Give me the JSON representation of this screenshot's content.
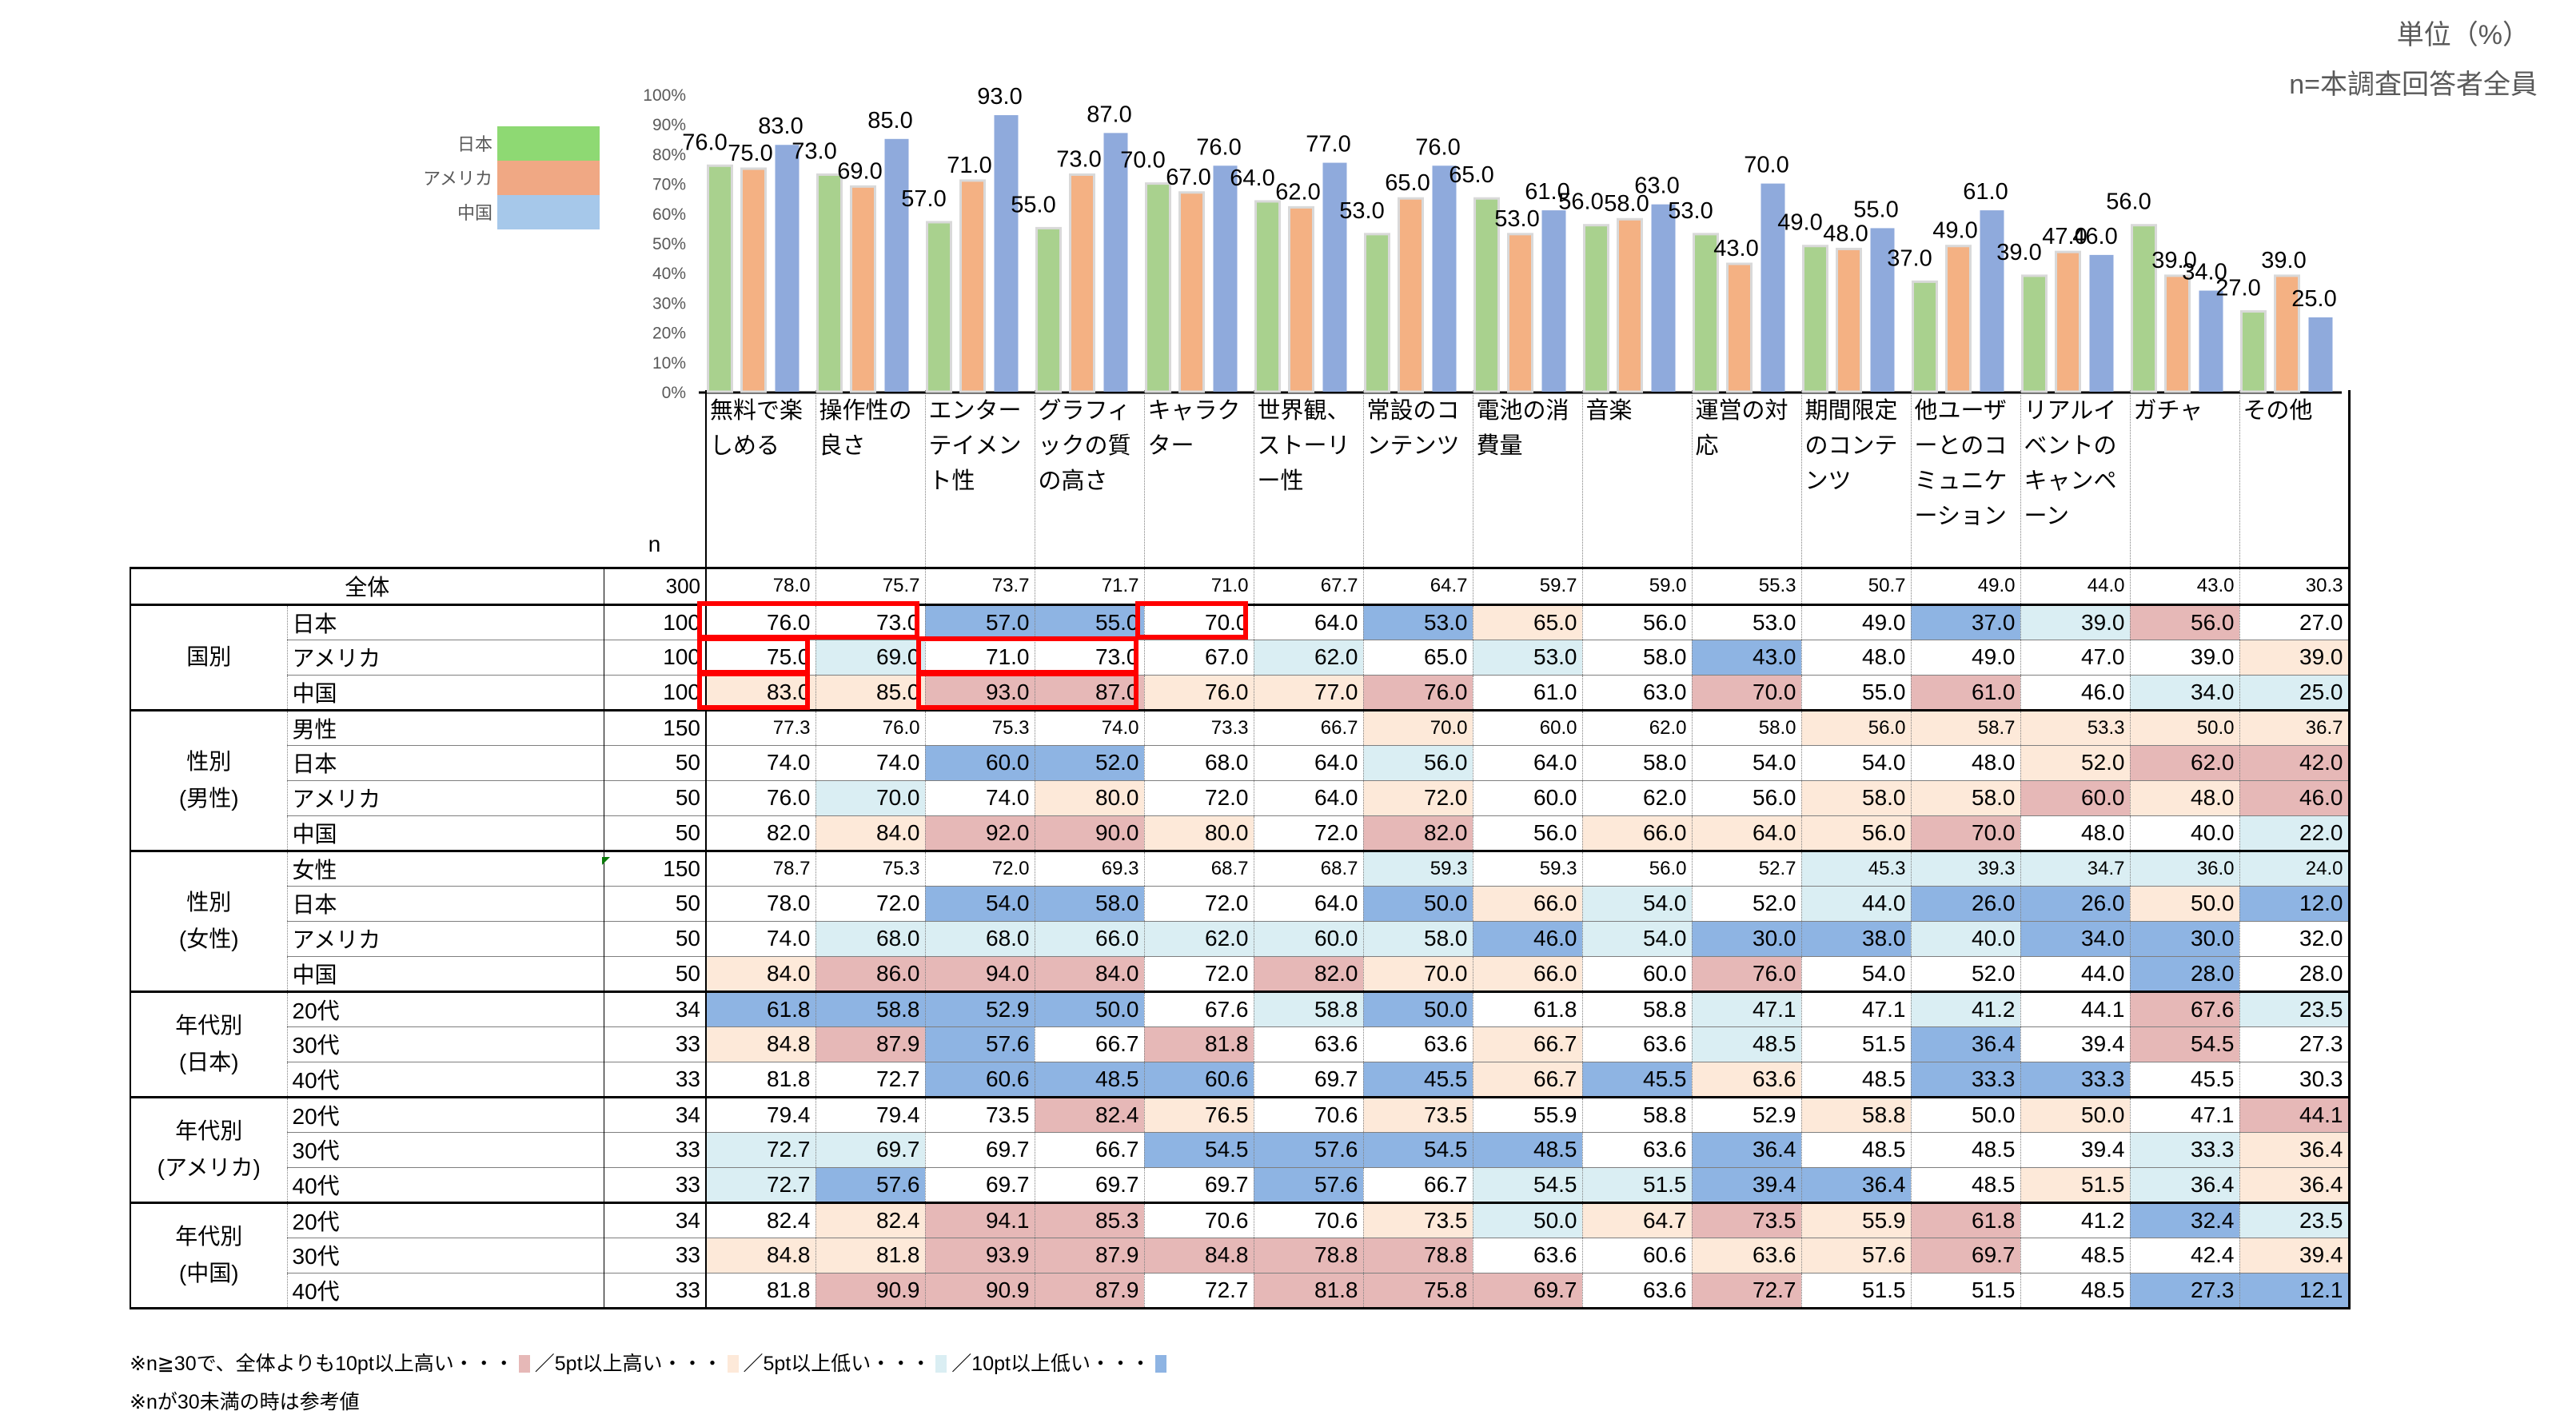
{
  "header": {
    "unit_label": "単位（%）",
    "n_label": "n=本調査回答者全員"
  },
  "colors": {
    "japan": "#a9d18e",
    "america": "#f4b183",
    "china": "#8faadc",
    "legend_japan": "#8ed973",
    "legend_america": "#f0a884",
    "legend_china": "#a6c8ea",
    "high10": "#e6b8b7",
    "high5": "#fde9d9",
    "low5": "#daeef3",
    "low10": "#8eb4e3",
    "highlight_box": "#ff0000"
  },
  "chart_data": {
    "type": "bar",
    "title": "",
    "xlabel": "",
    "ylabel": "",
    "ylim": [
      0,
      100
    ],
    "yticks": [
      "0%",
      "10%",
      "20%",
      "30%",
      "40%",
      "50%",
      "60%",
      "70%",
      "80%",
      "90%",
      "100%"
    ],
    "legend_position": "left",
    "grid": false,
    "categories": [
      "無料で楽しめる",
      "操作性の良さ",
      "エンターテイメント性",
      "グラフィックの質の高さ",
      "キャラクター",
      "世界観、ストーリー性",
      "常設のコンテンツ",
      "電池の消費量",
      "音楽",
      "運営の対応",
      "期間限定のコンテンツ",
      "他ユーザーとのコミュニケーション",
      "リアルイベントのキャンペーン",
      "ガチャ",
      "その他"
    ],
    "series": [
      {
        "name": "日本",
        "values": [
          76.0,
          73.0,
          57.0,
          55.0,
          70.0,
          64.0,
          53.0,
          65.0,
          56.0,
          53.0,
          49.0,
          37.0,
          39.0,
          56.0,
          27.0
        ]
      },
      {
        "name": "アメリカ",
        "values": [
          75.0,
          69.0,
          71.0,
          73.0,
          67.0,
          62.0,
          65.0,
          53.0,
          58.0,
          43.0,
          48.0,
          49.0,
          47.0,
          39.0,
          39.0
        ]
      },
      {
        "name": "中国",
        "values": [
          83.0,
          85.0,
          93.0,
          87.0,
          76.0,
          77.0,
          76.0,
          61.0,
          63.0,
          70.0,
          55.0,
          61.0,
          46.0,
          34.0,
          25.0
        ]
      }
    ],
    "data_label_format": "0.0"
  },
  "table": {
    "n_header": "n",
    "columns": [
      "無料で楽しめる",
      "操作性の良さ",
      "エンターテイメント性",
      "グラフィックの質の高さ",
      "キャラクター",
      "世界観、ストーリー性",
      "常設のコンテンツ",
      "電池の消費量",
      "音楽",
      "運営の対応",
      "期間限定のコンテンツ",
      "他ユーザーとのコミュニケーション",
      "リアルイベントのキャンペーン",
      "ガチャ",
      "その他"
    ],
    "total": {
      "label": "全体",
      "n": "300",
      "values": [
        "78.0",
        "75.7",
        "73.7",
        "71.7",
        "71.0",
        "67.7",
        "64.7",
        "59.7",
        "59.0",
        "55.3",
        "50.7",
        "49.0",
        "44.0",
        "43.0",
        "30.3"
      ]
    },
    "groups": [
      {
        "label": "国別",
        "rows": [
          {
            "label": "日本",
            "n": "100",
            "values": [
              "76.0",
              "73.0",
              "57.0",
              "55.0",
              "70.0",
              "64.0",
              "53.0",
              "65.0",
              "56.0",
              "53.0",
              "49.0",
              "37.0",
              "39.0",
              "56.0",
              "27.0"
            ],
            "flags": [
              "",
              "",
              "l10",
              "l10",
              "",
              "",
              "l10",
              "h5",
              "",
              "",
              "",
              "l10",
              "l5",
              "h10",
              ""
            ]
          },
          {
            "label": "アメリカ",
            "n": "100",
            "values": [
              "75.0",
              "69.0",
              "71.0",
              "73.0",
              "67.0",
              "62.0",
              "65.0",
              "53.0",
              "58.0",
              "43.0",
              "48.0",
              "49.0",
              "47.0",
              "39.0",
              "39.0"
            ],
            "flags": [
              "",
              "l5",
              "",
              "",
              "",
              "l5",
              "",
              "l5",
              "",
              "l10",
              "",
              "",
              "",
              "",
              "h5"
            ]
          },
          {
            "label": "中国",
            "n": "100",
            "values": [
              "83.0",
              "85.0",
              "93.0",
              "87.0",
              "76.0",
              "77.0",
              "76.0",
              "61.0",
              "63.0",
              "70.0",
              "55.0",
              "61.0",
              "46.0",
              "34.0",
              "25.0"
            ],
            "flags": [
              "h5",
              "h5",
              "h10",
              "h10",
              "h5",
              "h5",
              "h10",
              "",
              "",
              "h10",
              "",
              "h10",
              "",
              "l5",
              "l5"
            ]
          }
        ]
      },
      {
        "label": "性別\n(男性)",
        "rows": [
          {
            "label": "男性",
            "n": "150",
            "values": [
              "77.3",
              "76.0",
              "75.3",
              "74.0",
              "73.3",
              "66.7",
              "70.0",
              "60.0",
              "62.0",
              "58.0",
              "56.0",
              "58.7",
              "53.3",
              "50.0",
              "36.7"
            ],
            "flags": [
              "",
              "",
              "",
              "",
              "",
              "",
              "h5",
              "",
              "",
              "",
              "h5",
              "h5",
              "h5",
              "h5",
              "h5"
            ],
            "small": true
          },
          {
            "label": "日本",
            "n": "50",
            "values": [
              "74.0",
              "74.0",
              "60.0",
              "52.0",
              "68.0",
              "64.0",
              "56.0",
              "64.0",
              "58.0",
              "54.0",
              "54.0",
              "48.0",
              "52.0",
              "62.0",
              "42.0"
            ],
            "flags": [
              "",
              "",
              "l10",
              "l10",
              "",
              "",
              "l5",
              "",
              "",
              "",
              "",
              "",
              "h5",
              "h10",
              "h10"
            ]
          },
          {
            "label": "アメリカ",
            "n": "50",
            "values": [
              "76.0",
              "70.0",
              "74.0",
              "80.0",
              "72.0",
              "64.0",
              "72.0",
              "60.0",
              "62.0",
              "56.0",
              "58.0",
              "58.0",
              "60.0",
              "48.0",
              "46.0"
            ],
            "flags": [
              "",
              "l5",
              "",
              "h5",
              "",
              "",
              "h5",
              "",
              "",
              "",
              "h5",
              "h5",
              "h10",
              "h5",
              "h10"
            ]
          },
          {
            "label": "中国",
            "n": "50",
            "values": [
              "82.0",
              "84.0",
              "92.0",
              "90.0",
              "80.0",
              "72.0",
              "82.0",
              "56.0",
              "66.0",
              "64.0",
              "56.0",
              "70.0",
              "48.0",
              "40.0",
              "22.0"
            ],
            "flags": [
              "",
              "h5",
              "h10",
              "h10",
              "h5",
              "",
              "h10",
              "",
              "h5",
              "h5",
              "h5",
              "h10",
              "",
              "",
              "l5"
            ]
          }
        ]
      },
      {
        "label": "性別\n(女性)",
        "rows": [
          {
            "label": "女性",
            "n": "150",
            "values": [
              "78.7",
              "75.3",
              "72.0",
              "69.3",
              "68.7",
              "68.7",
              "59.3",
              "59.3",
              "56.0",
              "52.7",
              "45.3",
              "39.3",
              "34.7",
              "36.0",
              "24.0"
            ],
            "flags": [
              "",
              "",
              "",
              "",
              "",
              "",
              "l5",
              "",
              "",
              "",
              "l5",
              "l5",
              "l5",
              "l5",
              "l5"
            ],
            "small": true
          },
          {
            "label": "日本",
            "n": "50",
            "values": [
              "78.0",
              "72.0",
              "54.0",
              "58.0",
              "72.0",
              "64.0",
              "50.0",
              "66.0",
              "54.0",
              "52.0",
              "44.0",
              "26.0",
              "26.0",
              "50.0",
              "12.0"
            ],
            "flags": [
              "",
              "",
              "l10",
              "l10",
              "",
              "",
              "l10",
              "h5",
              "l5",
              "",
              "l5",
              "l10",
              "l10",
              "h5",
              "l10"
            ]
          },
          {
            "label": "アメリカ",
            "n": "50",
            "values": [
              "74.0",
              "68.0",
              "68.0",
              "66.0",
              "62.0",
              "60.0",
              "58.0",
              "46.0",
              "54.0",
              "30.0",
              "38.0",
              "40.0",
              "34.0",
              "30.0",
              "32.0"
            ],
            "flags": [
              "",
              "l5",
              "l5",
              "l5",
              "l5",
              "l5",
              "l5",
              "l10",
              "l5",
              "l10",
              "l10",
              "l5",
              "l10",
              "l10",
              ""
            ]
          },
          {
            "label": "中国",
            "n": "50",
            "values": [
              "84.0",
              "86.0",
              "94.0",
              "84.0",
              "72.0",
              "82.0",
              "70.0",
              "66.0",
              "60.0",
              "76.0",
              "54.0",
              "52.0",
              "44.0",
              "28.0",
              "28.0"
            ],
            "flags": [
              "h5",
              "h10",
              "h10",
              "h10",
              "",
              "h10",
              "h5",
              "h5",
              "",
              "h10",
              "",
              "",
              "",
              "l10",
              ""
            ]
          }
        ]
      },
      {
        "label": "年代別\n(日本)",
        "rows": [
          {
            "label": "20代",
            "n": "34",
            "values": [
              "61.8",
              "58.8",
              "52.9",
              "50.0",
              "67.6",
              "58.8",
              "50.0",
              "61.8",
              "58.8",
              "47.1",
              "47.1",
              "41.2",
              "44.1",
              "67.6",
              "23.5"
            ],
            "flags": [
              "l10",
              "l10",
              "l10",
              "l10",
              "",
              "l5",
              "l10",
              "",
              "",
              "l5",
              "",
              "l5",
              "",
              "h10",
              "l5"
            ]
          },
          {
            "label": "30代",
            "n": "33",
            "values": [
              "84.8",
              "87.9",
              "57.6",
              "66.7",
              "81.8",
              "63.6",
              "63.6",
              "66.7",
              "63.6",
              "48.5",
              "51.5",
              "36.4",
              "39.4",
              "54.5",
              "27.3"
            ],
            "flags": [
              "h5",
              "h10",
              "l10",
              "",
              "h10",
              "",
              "",
              "h5",
              "",
              "l5",
              "",
              "l10",
              "",
              "h10",
              ""
            ]
          },
          {
            "label": "40代",
            "n": "33",
            "values": [
              "81.8",
              "72.7",
              "60.6",
              "48.5",
              "60.6",
              "69.7",
              "45.5",
              "66.7",
              "45.5",
              "63.6",
              "48.5",
              "33.3",
              "33.3",
              "45.5",
              "30.3"
            ],
            "flags": [
              "",
              "",
              "l10",
              "l10",
              "l10",
              "",
              "l10",
              "h5",
              "l10",
              "h5",
              "",
              "l10",
              "l10",
              "",
              ""
            ]
          }
        ]
      },
      {
        "label": "年代別\n(アメリカ)",
        "rows": [
          {
            "label": "20代",
            "n": "34",
            "values": [
              "79.4",
              "79.4",
              "73.5",
              "82.4",
              "76.5",
              "70.6",
              "73.5",
              "55.9",
              "58.8",
              "52.9",
              "58.8",
              "50.0",
              "50.0",
              "47.1",
              "44.1"
            ],
            "flags": [
              "",
              "",
              "",
              "h10",
              "h5",
              "",
              "h5",
              "",
              "",
              "",
              "h5",
              "",
              "h5",
              "",
              "h10"
            ]
          },
          {
            "label": "30代",
            "n": "33",
            "values": [
              "72.7",
              "69.7",
              "69.7",
              "66.7",
              "54.5",
              "57.6",
              "54.5",
              "48.5",
              "63.6",
              "36.4",
              "48.5",
              "48.5",
              "39.4",
              "33.3",
              "36.4"
            ],
            "flags": [
              "l5",
              "l5",
              "",
              "",
              "l10",
              "l10",
              "l10",
              "l10",
              "",
              "l10",
              "",
              "",
              "",
              "l5",
              "h5"
            ]
          },
          {
            "label": "40代",
            "n": "33",
            "values": [
              "72.7",
              "57.6",
              "69.7",
              "69.7",
              "69.7",
              "57.6",
              "66.7",
              "54.5",
              "51.5",
              "39.4",
              "36.4",
              "48.5",
              "51.5",
              "36.4",
              "36.4"
            ],
            "flags": [
              "l5",
              "l10",
              "",
              "",
              "",
              "l10",
              "",
              "l5",
              "l5",
              "l10",
              "l10",
              "",
              "h5",
              "l5",
              "h5"
            ]
          }
        ]
      },
      {
        "label": "年代別\n(中国)",
        "rows": [
          {
            "label": "20代",
            "n": "34",
            "values": [
              "82.4",
              "82.4",
              "94.1",
              "85.3",
              "70.6",
              "70.6",
              "73.5",
              "50.0",
              "64.7",
              "73.5",
              "55.9",
              "61.8",
              "41.2",
              "32.4",
              "23.5"
            ],
            "flags": [
              "",
              "h5",
              "h10",
              "h10",
              "",
              "",
              "h5",
              "l5",
              "h5",
              "h10",
              "h5",
              "h10",
              "",
              "l10",
              "l5"
            ]
          },
          {
            "label": "30代",
            "n": "33",
            "values": [
              "84.8",
              "81.8",
              "93.9",
              "87.9",
              "84.8",
              "78.8",
              "78.8",
              "63.6",
              "60.6",
              "63.6",
              "57.6",
              "69.7",
              "48.5",
              "42.4",
              "39.4"
            ],
            "flags": [
              "h5",
              "h5",
              "h10",
              "h10",
              "h10",
              "h10",
              "h10",
              "",
              "",
              "h5",
              "h5",
              "h10",
              "",
              "",
              "h5"
            ]
          },
          {
            "label": "40代",
            "n": "33",
            "values": [
              "81.8",
              "90.9",
              "90.9",
              "87.9",
              "72.7",
              "81.8",
              "75.8",
              "69.7",
              "63.6",
              "72.7",
              "51.5",
              "51.5",
              "48.5",
              "27.3",
              "12.1"
            ],
            "flags": [
              "",
              "h10",
              "h10",
              "h10",
              "",
              "h10",
              "h10",
              "h10",
              "",
              "h10",
              "",
              "",
              "",
              "l10",
              "l10"
            ]
          }
        ]
      }
    ]
  },
  "footnotes": {
    "line1_prefix": "※n≧30で、全体よりも10pt以上高い・・・",
    "line1_h5": "／5pt以上高い・・・",
    "line1_l5": "／5pt以上低い・・・",
    "line1_l10": "／10pt以上低い・・・",
    "line2": "※nが30未満の時は参考値"
  }
}
